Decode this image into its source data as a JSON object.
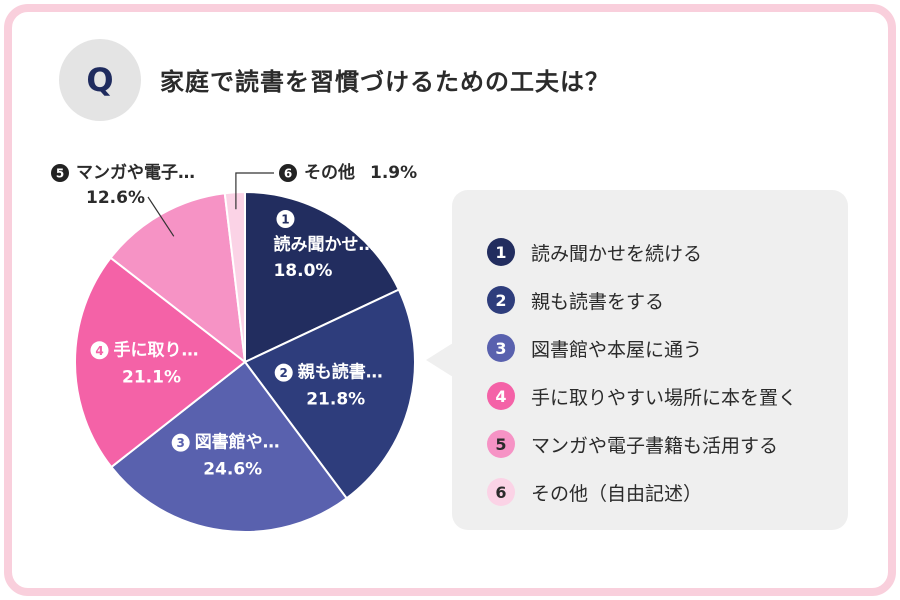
{
  "header": {
    "badge": "Q",
    "question": "家庭で読書を習慣づけるための工夫は？"
  },
  "chart_data": {
    "type": "pie",
    "title": "家庭で読書を習慣づけるための工夫は？",
    "start": "12 o'clock, clockwise",
    "slices": [
      {
        "num": "1",
        "label": "読み聞かせを続ける",
        "short_label": "読み聞かせ…",
        "value": 18.0,
        "value_text": "18.0%",
        "color": "#222d5f",
        "text_color": "#ffffff"
      },
      {
        "num": "2",
        "label": "親も読書をする",
        "short_label": "親も読書…",
        "value": 21.8,
        "value_text": "21.8%",
        "color": "#2e3d7c",
        "text_color": "#ffffff"
      },
      {
        "num": "3",
        "label": "図書館や本屋に通う",
        "short_label": "図書館や…",
        "value": 24.6,
        "value_text": "24.6%",
        "color": "#5961ae",
        "text_color": "#ffffff"
      },
      {
        "num": "4",
        "label": "手に取りやすい場所に本を置く",
        "short_label": "手に取り…",
        "value": 21.1,
        "value_text": "21.1%",
        "color": "#f462a7",
        "text_color": "#ffffff"
      },
      {
        "num": "5",
        "label": "マンガや電子書籍も活用する",
        "short_label": "マンガや電子…",
        "value": 12.6,
        "value_text": "12.6%",
        "color": "#f693c5",
        "text_color": "#2b2b2b"
      },
      {
        "num": "6",
        "label": "その他（自由記述）",
        "short_label": "その他",
        "value": 1.9,
        "value_text": "1.9%",
        "color": "#fbd3e6",
        "text_color": "#2b2b2b"
      }
    ]
  }
}
